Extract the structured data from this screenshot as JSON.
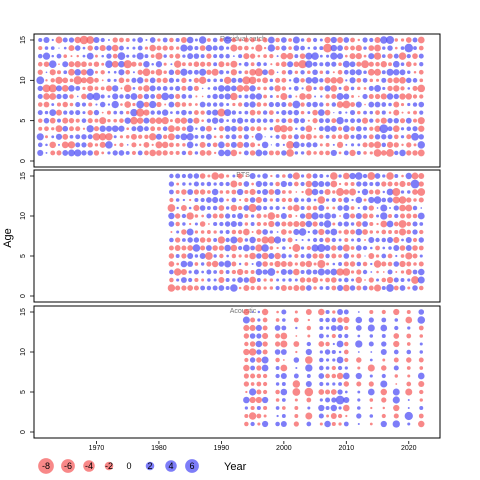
{
  "chart_data": {
    "type": "scatter",
    "subtype": "bubble-residual",
    "ylabel": "Age",
    "xlabel": "Year",
    "xlim": [
      1960,
      2025
    ],
    "ylim": [
      0,
      15
    ],
    "x_ticks": [
      1970,
      1980,
      1990,
      2000,
      2010,
      2020
    ],
    "y_ticks": [
      0,
      5,
      10,
      15
    ],
    "ages": [
      1,
      2,
      3,
      4,
      5,
      6,
      7,
      8,
      9,
      10,
      11,
      12,
      13,
      14,
      15
    ],
    "colors": {
      "positive": "#4b4bf5",
      "negative": "#f55a5a"
    },
    "legend": {
      "values": [
        -8,
        -6,
        -4,
        -2,
        0,
        2,
        4,
        6
      ],
      "labels": [
        "-8",
        "-6",
        "-4",
        "-2",
        "0",
        "2",
        "4",
        "6"
      ]
    },
    "panels": [
      {
        "title": "Residual catch",
        "year_start": 1961,
        "year_end": 2022,
        "values": []
      },
      {
        "title": "BTS",
        "year_start": 1982,
        "year_end": 2022,
        "values": []
      },
      {
        "title": "Acoustic",
        "year_start": 1994,
        "year_end": 2022,
        "years": [
          1994,
          1995,
          1996,
          1997,
          1999,
          2000,
          2002,
          2004,
          2006,
          2007,
          2008,
          2009,
          2010,
          2012,
          2014,
          2016,
          2018,
          2020,
          2022
        ],
        "values": []
      }
    ]
  }
}
